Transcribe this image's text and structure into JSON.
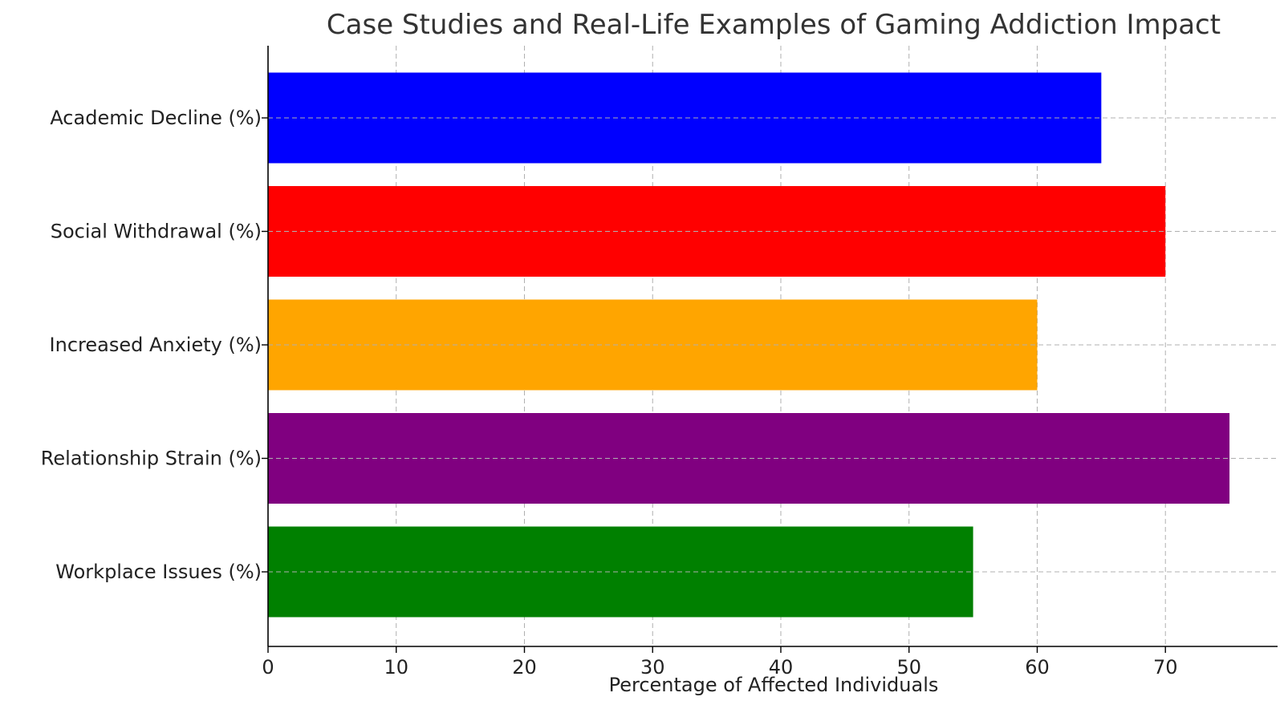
{
  "chart_data": {
    "type": "bar",
    "orientation": "horizontal",
    "title": "Case Studies and Real-Life Examples of Gaming Addiction Impact",
    "xlabel": "Percentage of Affected Individuals",
    "ylabel": "",
    "categories": [
      "Academic Decline (%)",
      "Social Withdrawal (%)",
      "Increased Anxiety (%)",
      "Relationship Strain (%)",
      "Workplace Issues (%)"
    ],
    "values": [
      65,
      70,
      60,
      75,
      55
    ],
    "colors": [
      "#0000ff",
      "#ff0000",
      "#ffa500",
      "#800080",
      "#008000"
    ],
    "xlim": [
      0,
      78.75
    ],
    "xticks": [
      0,
      10,
      20,
      30,
      40,
      50,
      60,
      70
    ],
    "grid": true
  }
}
